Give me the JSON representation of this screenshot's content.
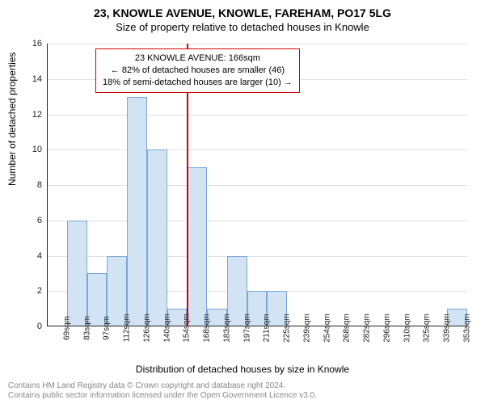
{
  "title": "23, KNOWLE AVENUE, KNOWLE, FAREHAM, PO17 5LG",
  "subtitle": "Size of property relative to detached houses in Knowle",
  "ylabel": "Number of detached properties",
  "xlabel": "Distribution of detached houses by size in Knowle",
  "footer_line1": "Contains HM Land Registry data © Crown copyright and database right 2024.",
  "footer_line2": "Contains public sector information licensed under the Open Government Licence v3.0.",
  "annotation": {
    "line1": "23 KNOWLE AVENUE: 166sqm",
    "line2": "← 82% of detached houses are smaller (46)",
    "line3": "18% of semi-detached houses are larger (10) →",
    "border_color": "#d00000"
  },
  "chart": {
    "type": "histogram",
    "ylim": [
      0,
      16
    ],
    "ytick_step": 2,
    "xticks": [
      "69sqm",
      "83sqm",
      "97sqm",
      "112sqm",
      "126sqm",
      "140sqm",
      "154sqm",
      "168sqm",
      "183sqm",
      "197sqm",
      "211sqm",
      "225sqm",
      "239sqm",
      "254sqm",
      "268sqm",
      "282sqm",
      "296sqm",
      "310sqm",
      "325sqm",
      "339sqm",
      "353sqm"
    ],
    "values": [
      0,
      6,
      3,
      4,
      13,
      10,
      1,
      9,
      1,
      4,
      2,
      2,
      0,
      0,
      0,
      0,
      0,
      0,
      0,
      0,
      1
    ],
    "bar_fill": "#d2e4f4",
    "bar_border": "#7aa7d8",
    "background": "#ffffff",
    "grid_color": "#e0e0e0",
    "axis_color": "#222222",
    "reference_line": {
      "index": 7,
      "color": "#d00000"
    }
  }
}
